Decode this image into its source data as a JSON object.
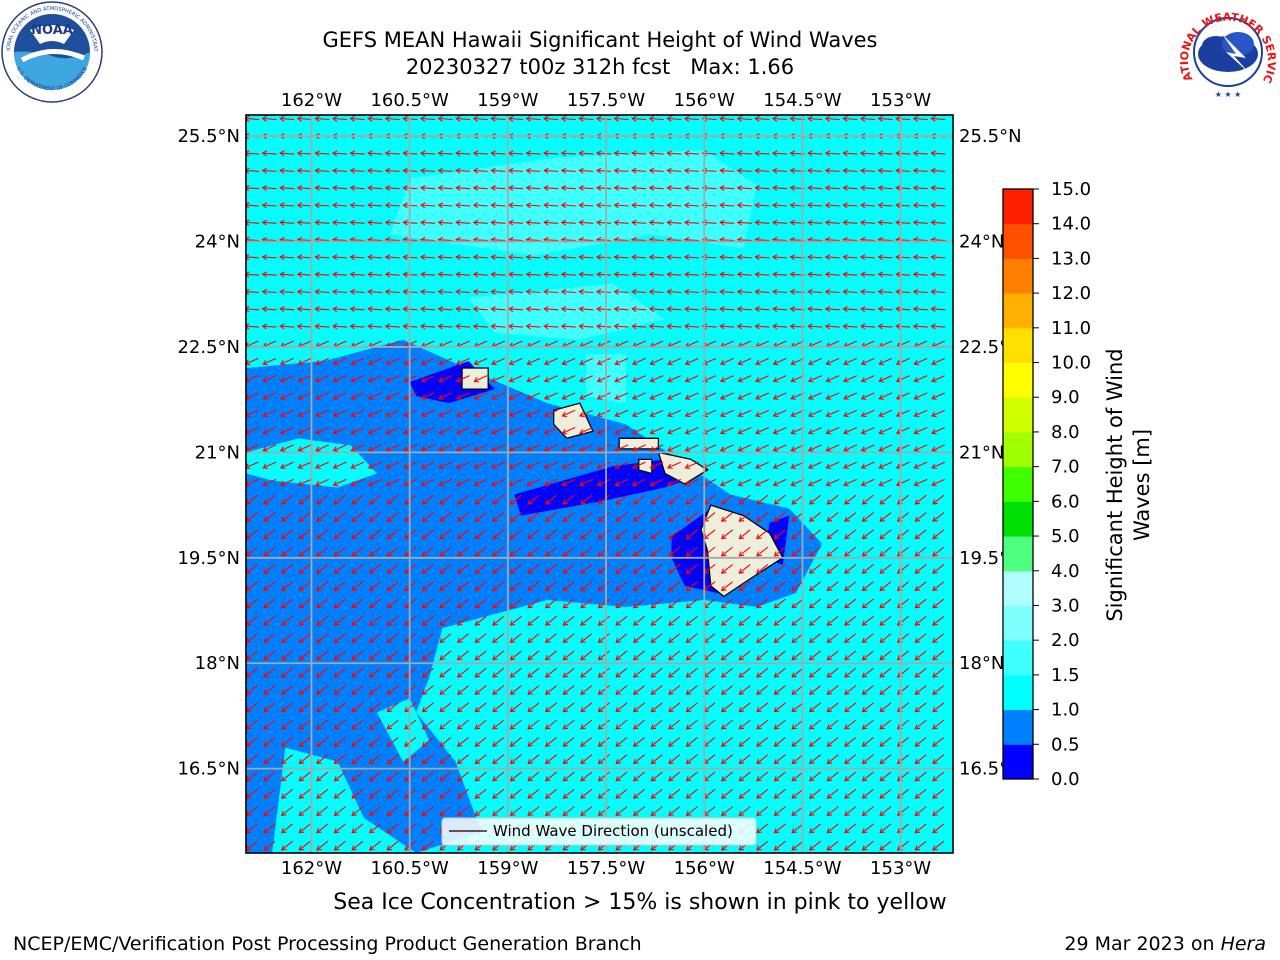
{
  "header": {
    "title_line1": "GEFS MEAN Hawaii Significant Height of Wind Waves",
    "title_line2": "20230327 t00z 312h fcst   Max: 1.66"
  },
  "map": {
    "lon_ticks": [
      "162°W",
      "160.5°W",
      "159°W",
      "157.5°W",
      "156°W",
      "154.5°W",
      "153°W"
    ],
    "lat_ticks": [
      "25.5°N",
      "24°N",
      "22.5°N",
      "21°N",
      "19.5°N",
      "18°N",
      "16.5°N"
    ],
    "lon_values": [
      -162,
      -160.5,
      -159,
      -157.5,
      -156,
      -154.5,
      -153
    ],
    "lat_values": [
      25.5,
      24,
      22.5,
      21,
      19.5,
      18,
      16.5
    ],
    "extent": {
      "lon": [
        -163,
        -152.2
      ],
      "lat": [
        15.3,
        25.8
      ]
    },
    "legend_label": "Wind Wave Direction (unscaled)",
    "ocean_color": "#00ffff",
    "arrow_color": "#ff0000",
    "land_color": "#eeeedd",
    "grid": true
  },
  "colorbar": {
    "title_line1": "Significant Height of Wind",
    "title_line2": "Waves [m]",
    "ticks": [
      "0.0",
      "0.5",
      "1.0",
      "1.5",
      "2.0",
      "3.0",
      "4.0",
      "5.0",
      "6.0",
      "7.0",
      "8.0",
      "9.0",
      "10.0",
      "11.0",
      "12.0",
      "13.0",
      "14.0",
      "15.0"
    ],
    "colors": [
      "#0000ff",
      "#0080ff",
      "#00ffff",
      "#40ffff",
      "#80ffff",
      "#b0ffff",
      "#50ff80",
      "#00e000",
      "#40ff00",
      "#a0ff00",
      "#d0ff00",
      "#ffff00",
      "#ffe000",
      "#ffb000",
      "#ff8000",
      "#ff5000",
      "#ff2000",
      "#ff0000"
    ]
  },
  "footer": {
    "note": "Sea Ice Concentration > 15% is shown in pink to yellow",
    "left": "NCEP/EMC/Verification Post Processing Product Generation Branch",
    "right_prefix": "29 Mar 2023 on ",
    "right_host": "Hera"
  },
  "logos": {
    "noaa_text": "NOAA",
    "noaa_ring": "NATIONAL OCEANIC AND ATMOSPHERIC ADMINISTRATION",
    "noaa_ring_bottom": "U.S. DEPARTMENT OF COMMERCE",
    "nws_ring": "NATIONAL WEATHER SERVICE"
  }
}
